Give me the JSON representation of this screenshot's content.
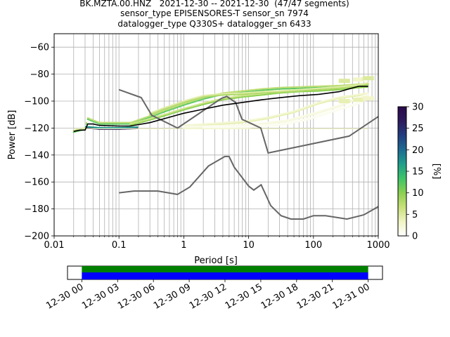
{
  "title_lines": [
    "BK.MZTA.00.HNZ   2021-12-30 -- 2021-12-30  (47/47 segments)",
    "sensor_type EPISENSORES-T sensor_sn 7974",
    "datalogger_type Q330S+ datalogger_sn 6433"
  ],
  "colors": {
    "curves": "#666666",
    "mode": "#000000",
    "coverage_green": "#008000",
    "coverage_blue": "#0000ff"
  },
  "chart_data": [
    {
      "type": "heatmap",
      "xlabel": "Period [s]",
      "ylabel": "Power [dB]",
      "x_scale": "log",
      "xlim": [
        0.01,
        1000
      ],
      "ylim": [
        -200,
        -50
      ],
      "xticks": [
        0.01,
        0.1,
        1,
        10,
        100,
        1000
      ],
      "xtick_labels": [
        "0.01",
        "0.1",
        "1",
        "10",
        "100",
        "1000"
      ],
      "yticks": [
        -200,
        -180,
        -160,
        -140,
        -120,
        -100,
        -80,
        -60
      ],
      "ytick_labels": [
        "−200",
        "−180",
        "−160",
        "−140",
        "−120",
        "−100",
        "−80",
        "−60"
      ],
      "grid": true,
      "colorbar": {
        "label": "[%]",
        "range": [
          0,
          30
        ],
        "ticks": [
          0,
          5,
          10,
          15,
          20,
          25,
          30
        ],
        "tick_labels": [
          "0",
          "5",
          "10",
          "15",
          "20",
          "25",
          "30"
        ],
        "cmap": [
          "#ffffff",
          "#f0f4c3",
          "#c8e07a",
          "#8cd050",
          "#3ec46a",
          "#1e9e8a",
          "#1d6a92",
          "#223d80",
          "#2d1a5c",
          "#2a0a4a"
        ]
      },
      "noise_models": [
        {
          "points": [
            [
              0.1,
              -91.5
            ],
            [
              0.22,
              -97.4
            ],
            [
              0.32,
              -110.5
            ],
            [
              0.8,
              -120
            ],
            [
              3.8,
              -98
            ],
            [
              4.6,
              -96.5
            ],
            [
              6.3,
              -101
            ],
            [
              7.9,
              -113.5
            ],
            [
              15.4,
              -120
            ],
            [
              20,
              -138.5
            ],
            [
              354.8,
              -126
            ],
            [
              1000,
              -111.5
            ]
          ]
        },
        {
          "points": [
            [
              0.1,
              -168
            ],
            [
              0.17,
              -166.7
            ],
            [
              0.4,
              -166.7
            ],
            [
              0.8,
              -169.2
            ],
            [
              1.24,
              -163.7
            ],
            [
              2.4,
              -148.1
            ],
            [
              4.3,
              -141.1
            ],
            [
              5,
              -141.1
            ],
            [
              6,
              -149
            ],
            [
              10,
              -163
            ],
            [
              12,
              -166
            ],
            [
              15.6,
              -162.1
            ],
            [
              21.9,
              -177.5
            ],
            [
              31.6,
              -185
            ],
            [
              45,
              -187.5
            ],
            [
              70,
              -187.5
            ],
            [
              100,
              -185
            ],
            [
              154,
              -185
            ],
            [
              328,
              -187.5
            ],
            [
              600,
              -184.4
            ],
            [
              1000,
              -178.3
            ]
          ]
        }
      ],
      "mode_curve": {
        "points": [
          [
            0.02,
            -122.5
          ],
          [
            0.025,
            -121.5
          ],
          [
            0.03,
            -121.5
          ],
          [
            0.033,
            -117
          ],
          [
            0.04,
            -117
          ],
          [
            0.05,
            -118
          ],
          [
            0.1,
            -118.5
          ],
          [
            0.15,
            -118.5
          ],
          [
            0.3,
            -116
          ],
          [
            0.5,
            -113
          ],
          [
            1,
            -109
          ],
          [
            2,
            -106
          ],
          [
            4,
            -103
          ],
          [
            8,
            -101
          ],
          [
            16,
            -99
          ],
          [
            30,
            -97.5
          ],
          [
            60,
            -96
          ],
          [
            120,
            -95
          ],
          [
            250,
            -93
          ],
          [
            350,
            -91
          ],
          [
            500,
            -89
          ],
          [
            700,
            -89
          ]
        ]
      },
      "histogram_bands": [
        {
          "percent": 28,
          "points": [
            [
              0.031,
              -120
            ],
            [
              0.05,
              -120.8
            ],
            [
              0.1,
              -120.8
            ],
            [
              0.2,
              -120.3
            ]
          ]
        },
        {
          "percent": 12,
          "points": [
            [
              0.02,
              -123
            ],
            [
              0.03,
              -121
            ],
            [
              0.033,
              -113.5
            ],
            [
              0.05,
              -117
            ],
            [
              0.1,
              -117
            ],
            [
              0.15,
              -117
            ],
            [
              0.3,
              -112
            ],
            [
              0.5,
              -108
            ],
            [
              1,
              -103
            ],
            [
              2,
              -98.5
            ],
            [
              4,
              -95
            ],
            [
              8,
              -93.5
            ],
            [
              16,
              -92
            ],
            [
              30,
              -91
            ],
            [
              60,
              -90.5
            ],
            [
              120,
              -90
            ],
            [
              250,
              -89.5
            ],
            [
              500,
              -88.5
            ],
            [
              700,
              -88
            ]
          ]
        },
        {
          "percent": 10,
          "points": [
            [
              0.15,
              -118
            ],
            [
              0.3,
              -114
            ],
            [
              0.5,
              -111
            ],
            [
              1,
              -106.5
            ],
            [
              2,
              -102.5
            ],
            [
              4,
              -99
            ],
            [
              8,
              -97
            ],
            [
              16,
              -95.5
            ],
            [
              30,
              -94
            ],
            [
              60,
              -93
            ],
            [
              120,
              -92.5
            ],
            [
              250,
              -91.5
            ],
            [
              500,
              -90
            ],
            [
              700,
              -89.5
            ]
          ]
        },
        {
          "percent": 8,
          "points": [
            [
              0.3,
              -110
            ],
            [
              0.5,
              -106
            ],
            [
              1,
              -101
            ],
            [
              2,
              -97
            ],
            [
              4,
              -95.5
            ],
            [
              8,
              -95
            ],
            [
              16,
              -94
            ],
            [
              30,
              -93.5
            ],
            [
              60,
              -92.5
            ],
            [
              120,
              -91.5
            ],
            [
              250,
              -90.5
            ],
            [
              500,
              -89
            ],
            [
              700,
              -87.5
            ]
          ]
        },
        {
          "percent": 4,
          "points": [
            [
              1,
              -119
            ],
            [
              3,
              -117.5
            ],
            [
              8,
              -116
            ],
            [
              20,
              -113
            ],
            [
              50,
              -108.5
            ],
            [
              120,
              -102
            ],
            [
              250,
              -98
            ],
            [
              500,
              -96
            ],
            [
              700,
              -95
            ]
          ]
        },
        {
          "percent": 2,
          "points": [
            [
              1,
              -120
            ],
            [
              5,
              -119
            ],
            [
              15,
              -117.5
            ],
            [
              40,
              -115
            ],
            [
              100,
              -110
            ],
            [
              250,
              -104
            ],
            [
              500,
              -98
            ],
            [
              700,
              -96
            ]
          ]
        },
        {
          "percent": 1,
          "points": [
            [
              2,
              -120
            ],
            [
              10,
              -119.5
            ],
            [
              30,
              -118
            ],
            [
              80,
              -114
            ],
            [
              200,
              -108
            ],
            [
              500,
              -102
            ],
            [
              700,
              -98
            ]
          ]
        }
      ],
      "floor_line_db": -120.5,
      "extra_cells": [
        {
          "percent": 5,
          "x": 300,
          "y": -85
        },
        {
          "percent": 3,
          "x": 500,
          "y": -84
        },
        {
          "percent": 5,
          "x": 700,
          "y": -83
        },
        {
          "percent": 4,
          "x": 300,
          "y": -100
        },
        {
          "percent": 4,
          "x": 500,
          "y": -99
        },
        {
          "percent": 3,
          "x": 700,
          "y": -98
        }
      ]
    },
    {
      "type": "bar",
      "title": "",
      "xtick_labels": [
        "12-30 00",
        "12-30 03",
        "12-30 06",
        "12-30 09",
        "12-30 12",
        "12-30 15",
        "12-30 18",
        "12-30 21",
        "12-31 00"
      ],
      "x_hours": [
        0,
        3,
        6,
        9,
        12,
        15,
        18,
        21,
        24
      ],
      "xlim_hours": [
        -1.2,
        25.2
      ],
      "coverage_hours": [
        0,
        24
      ]
    }
  ]
}
